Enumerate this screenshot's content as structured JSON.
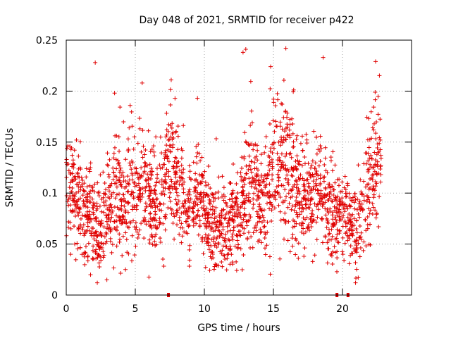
{
  "chart_data": {
    "type": "scatter",
    "title": "Day 048 of 2021, SRMTID for receiver p422",
    "xlabel": "GPS time / hours",
    "ylabel": "SRMTID / TECUs",
    "xlim": [
      0,
      25
    ],
    "ylim": [
      0,
      0.25
    ],
    "xticks": [
      0,
      5,
      10,
      15,
      20
    ],
    "xtick_labels": [
      "0",
      "5",
      "10",
      "15",
      "20"
    ],
    "yticks": [
      0,
      0.05,
      0.1,
      0.15,
      0.2,
      0.25
    ],
    "ytick_labels": [
      "0",
      "0.05",
      "0.1",
      "0.15",
      "0.2",
      "0.25"
    ],
    "grid": true,
    "marker": "+",
    "color": "#e00000",
    "outliers": [
      {
        "x": 2.1,
        "y": 0.228
      },
      {
        "x": 3.5,
        "y": 0.198
      },
      {
        "x": 5.5,
        "y": 0.208
      },
      {
        "x": 7.6,
        "y": 0.211
      },
      {
        "x": 9.5,
        "y": 0.193
      },
      {
        "x": 12.8,
        "y": 0.238
      },
      {
        "x": 13.0,
        "y": 0.241
      },
      {
        "x": 14.8,
        "y": 0.224
      },
      {
        "x": 15.9,
        "y": 0.242
      },
      {
        "x": 18.6,
        "y": 0.233
      },
      {
        "x": 22.4,
        "y": 0.229
      }
    ],
    "bursts": [
      {
        "x": 0.5,
        "center": 0.1,
        "spread": 0.045
      },
      {
        "x": 1.5,
        "center": 0.085,
        "spread": 0.05
      },
      {
        "x": 2.4,
        "center": 0.055,
        "spread": 0.035
      },
      {
        "x": 3.4,
        "center": 0.09,
        "spread": 0.055
      },
      {
        "x": 4.5,
        "center": 0.1,
        "spread": 0.055
      },
      {
        "x": 5.5,
        "center": 0.11,
        "spread": 0.06
      },
      {
        "x": 6.5,
        "center": 0.085,
        "spread": 0.045
      },
      {
        "x": 7.6,
        "center": 0.13,
        "spread": 0.06
      },
      {
        "x": 8.6,
        "center": 0.085,
        "spread": 0.04
      },
      {
        "x": 9.6,
        "center": 0.095,
        "spread": 0.045
      },
      {
        "x": 10.6,
        "center": 0.07,
        "spread": 0.04
      },
      {
        "x": 11.6,
        "center": 0.065,
        "spread": 0.04
      },
      {
        "x": 12.6,
        "center": 0.085,
        "spread": 0.05
      },
      {
        "x": 13.3,
        "center": 0.12,
        "spread": 0.06
      },
      {
        "x": 14.0,
        "center": 0.09,
        "spread": 0.045
      },
      {
        "x": 15.0,
        "center": 0.12,
        "spread": 0.06
      },
      {
        "x": 16.0,
        "center": 0.13,
        "spread": 0.07
      },
      {
        "x": 17.0,
        "center": 0.095,
        "spread": 0.05
      },
      {
        "x": 18.2,
        "center": 0.1,
        "spread": 0.055
      },
      {
        "x": 19.2,
        "center": 0.08,
        "spread": 0.04
      },
      {
        "x": 20.2,
        "center": 0.075,
        "spread": 0.035
      },
      {
        "x": 21.0,
        "center": 0.065,
        "spread": 0.04
      },
      {
        "x": 21.8,
        "center": 0.1,
        "spread": 0.05
      },
      {
        "x": 22.5,
        "center": 0.13,
        "spread": 0.06
      }
    ],
    "gap_markers_x": [
      7.4,
      19.6,
      20.4
    ]
  }
}
